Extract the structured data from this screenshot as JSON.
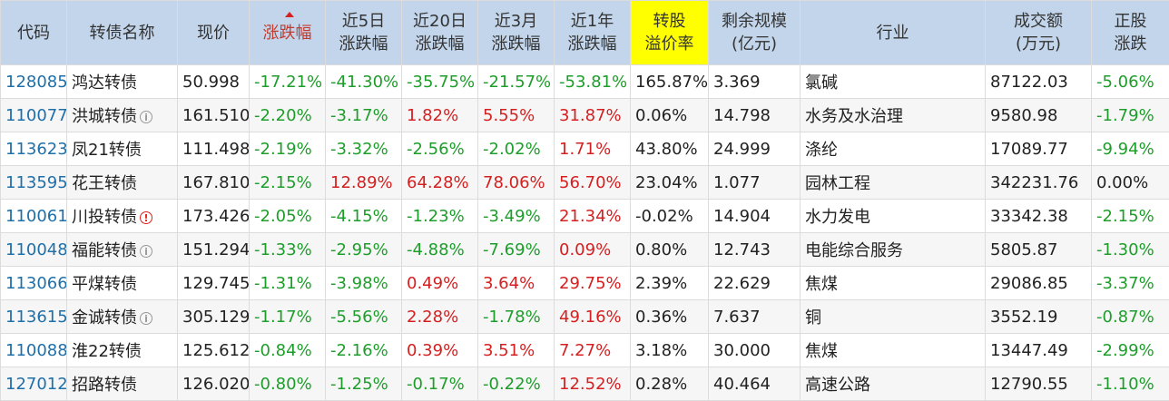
{
  "headers": [
    {
      "l1": "代码",
      "l2": ""
    },
    {
      "l1": "转债名称",
      "l2": ""
    },
    {
      "l1": "现价",
      "l2": ""
    },
    {
      "l1": "涨跌幅",
      "l2": ""
    },
    {
      "l1": "近5日",
      "l2": "涨跌幅"
    },
    {
      "l1": "近20日",
      "l2": "涨跌幅"
    },
    {
      "l1": "近3月",
      "l2": "涨跌幅"
    },
    {
      "l1": "近1年",
      "l2": "涨跌幅"
    },
    {
      "l1": "转股",
      "l2": "溢价率"
    },
    {
      "l1": "剩余规模",
      "l2": "(亿元)"
    },
    {
      "l1": "行业",
      "l2": ""
    },
    {
      "l1": "成交额",
      "l2": "(万元)"
    },
    {
      "l1": "正股",
      "l2": "涨跌"
    }
  ],
  "rows": [
    {
      "code": "128085",
      "name": "鸿达转债",
      "icon": "",
      "price": "50.998",
      "chg": "-17.21%",
      "d5": "-41.30%",
      "d20": "-35.75%",
      "m3": "-21.57%",
      "y1": "-53.81%",
      "premium": "165.87%",
      "scale": "3.369",
      "industry": "氯碱",
      "turnover": "87122.03",
      "stock_chg": "-5.06%"
    },
    {
      "code": "110077",
      "name": "洪城转债",
      "icon": "info",
      "price": "161.510",
      "chg": "-2.20%",
      "d5": "-3.17%",
      "d20": "1.82%",
      "m3": "5.55%",
      "y1": "31.87%",
      "premium": "0.06%",
      "scale": "14.798",
      "industry": "水务及水治理",
      "turnover": "9580.98",
      "stock_chg": "-1.79%"
    },
    {
      "code": "113623",
      "name": "凤21转债",
      "icon": "",
      "price": "111.498",
      "chg": "-2.19%",
      "d5": "-3.32%",
      "d20": "-2.56%",
      "m3": "-2.02%",
      "y1": "1.71%",
      "premium": "43.80%",
      "scale": "24.999",
      "industry": "涤纶",
      "turnover": "17089.77",
      "stock_chg": "-9.94%"
    },
    {
      "code": "113595",
      "name": "花王转债",
      "icon": "",
      "price": "167.810",
      "chg": "-2.15%",
      "d5": "12.89%",
      "d20": "64.28%",
      "m3": "78.06%",
      "y1": "56.70%",
      "premium": "23.04%",
      "scale": "1.077",
      "industry": "园林工程",
      "turnover": "342231.76",
      "stock_chg": "0.00%"
    },
    {
      "code": "110061",
      "name": "川投转债",
      "icon": "warn",
      "price": "173.426",
      "chg": "-2.05%",
      "d5": "-4.15%",
      "d20": "-1.23%",
      "m3": "-3.49%",
      "y1": "21.34%",
      "premium": "-0.02%",
      "scale": "14.904",
      "industry": "水力发电",
      "turnover": "33342.38",
      "stock_chg": "-2.15%"
    },
    {
      "code": "110048",
      "name": "福能转债",
      "icon": "info",
      "price": "151.294",
      "chg": "-1.33%",
      "d5": "-2.95%",
      "d20": "-4.88%",
      "m3": "-7.69%",
      "y1": "0.09%",
      "premium": "0.80%",
      "scale": "12.743",
      "industry": "电能综合服务",
      "turnover": "5805.87",
      "stock_chg": "-1.30%"
    },
    {
      "code": "113066",
      "name": "平煤转债",
      "icon": "",
      "price": "129.745",
      "chg": "-1.31%",
      "d5": "-3.98%",
      "d20": "0.49%",
      "m3": "3.64%",
      "y1": "29.75%",
      "premium": "2.39%",
      "scale": "22.629",
      "industry": "焦煤",
      "turnover": "29086.85",
      "stock_chg": "-3.37%"
    },
    {
      "code": "113615",
      "name": "金诚转债",
      "icon": "info",
      "price": "305.129",
      "chg": "-1.17%",
      "d5": "-5.56%",
      "d20": "2.28%",
      "m3": "-1.78%",
      "y1": "49.16%",
      "premium": "0.36%",
      "scale": "7.637",
      "industry": "铜",
      "turnover": "3552.19",
      "stock_chg": "-0.87%"
    },
    {
      "code": "110088",
      "name": "淮22转债",
      "icon": "",
      "price": "125.612",
      "chg": "-0.84%",
      "d5": "-2.16%",
      "d20": "0.39%",
      "m3": "3.51%",
      "y1": "7.27%",
      "premium": "3.18%",
      "scale": "30.000",
      "industry": "焦煤",
      "turnover": "13447.49",
      "stock_chg": "-2.99%"
    },
    {
      "code": "127012",
      "name": "招路转债",
      "icon": "",
      "price": "126.020",
      "chg": "-0.80%",
      "d5": "-1.25%",
      "d20": "-0.17%",
      "m3": "-0.22%",
      "y1": "12.52%",
      "premium": "0.28%",
      "scale": "40.464",
      "industry": "高速公路",
      "turnover": "12790.55",
      "stock_chg": "-1.10%"
    }
  ],
  "colors": {
    "header_bg": "#c2d5ea",
    "highlight_bg": "#ffff00",
    "positive": "#d42020",
    "negative": "#1d9e2a",
    "code": "#1f6fa8"
  },
  "icons": {
    "info": "info-circle-icon",
    "warn": "warning-circle-icon",
    "sort": "sort-desc-icon"
  }
}
